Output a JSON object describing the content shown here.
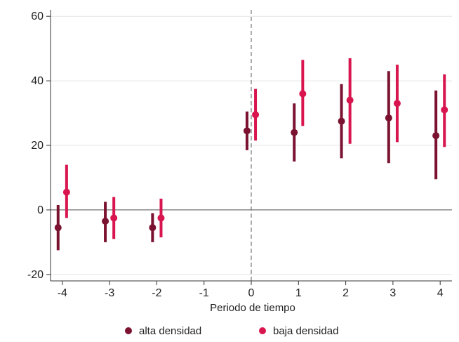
{
  "chart_data": {
    "type": "scatter",
    "title": "",
    "xlabel": "Periodo de tiempo",
    "ylabel": "",
    "xlim": [
      -4.25,
      4.25
    ],
    "ylim": [
      -22,
      62
    ],
    "x_ticks": [
      -4,
      -3,
      -2,
      -1,
      0,
      1,
      2,
      3,
      4
    ],
    "x_tick_labels": [
      "-4",
      "-3",
      "-2",
      "-1",
      "0",
      "1",
      "2",
      "3",
      "4"
    ],
    "y_ticks": [
      -20,
      0,
      20,
      40,
      60
    ],
    "y_tick_labels": [
      "-20",
      "0",
      "20",
      "40",
      "60"
    ],
    "grid": "horizontal",
    "reference_lines": {
      "horizontal_y": 0,
      "vertical_dashed_x": 0
    },
    "legend_position": "bottom",
    "series": [
      {
        "name": "alta densidad",
        "color": "#7a1230",
        "offset": -0.09,
        "x": [
          -4,
          -3,
          -2,
          0,
          1,
          2,
          3,
          4
        ],
        "y": [
          -5.5,
          -3.5,
          -5.5,
          24.5,
          24.0,
          27.5,
          28.5,
          23.0
        ],
        "lower": [
          -12.5,
          -10.0,
          -10.0,
          18.5,
          15.0,
          16.0,
          14.5,
          9.5
        ],
        "upper": [
          1.5,
          2.5,
          -1.0,
          30.5,
          33.0,
          39.0,
          43.0,
          37.0
        ]
      },
      {
        "name": "baja densidad",
        "color": "#d8154e",
        "offset": 0.09,
        "x": [
          -4,
          -3,
          -2,
          0,
          1,
          2,
          3,
          4
        ],
        "y": [
          5.5,
          -2.5,
          -2.5,
          29.5,
          36.0,
          34.0,
          33.0,
          31.0
        ],
        "lower": [
          -2.5,
          -9.0,
          -8.5,
          21.5,
          26.0,
          20.5,
          21.0,
          19.5
        ],
        "upper": [
          14.0,
          4.0,
          3.5,
          37.5,
          46.5,
          47.0,
          45.0,
          42.0
        ]
      }
    ]
  }
}
